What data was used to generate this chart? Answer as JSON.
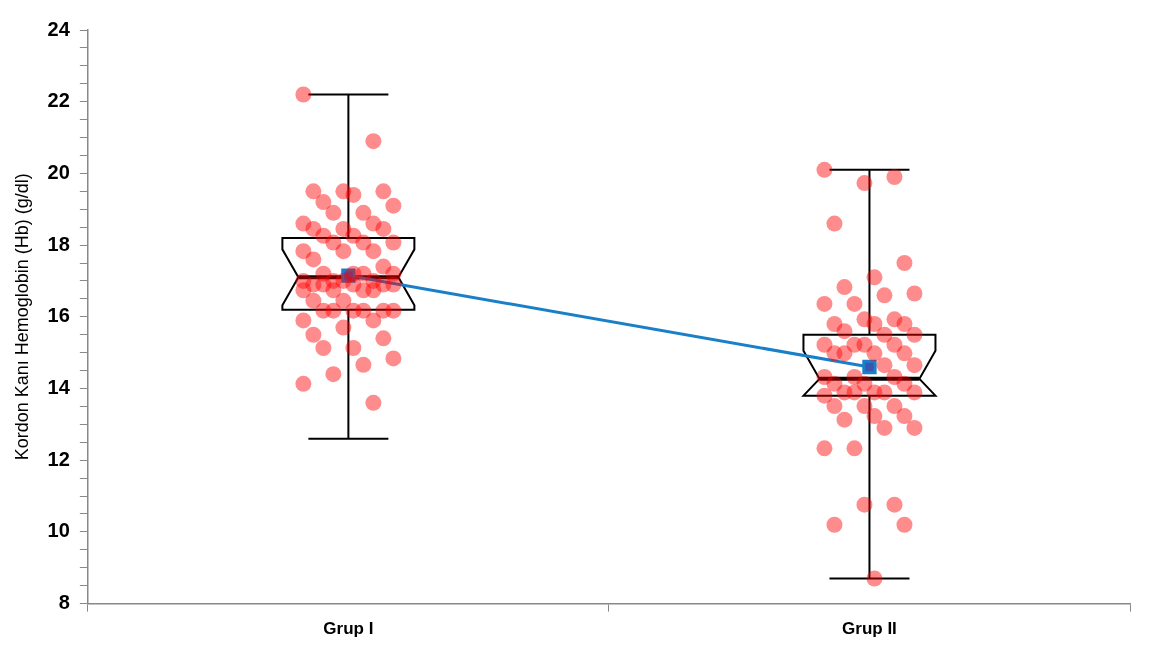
{
  "chart_data": {
    "type": "box",
    "ylabel": "Kordon Kanı Hemoglobin (Hb) (g/dl)",
    "categories": [
      "Grup I",
      "Grup II"
    ],
    "boxes": [
      {
        "low": 12.6,
        "q1": 16.2,
        "median": 17.1,
        "q3": 18.2,
        "high": 22.2
      },
      {
        "low": 8.7,
        "q1": 13.8,
        "median": 14.27,
        "q3": 15.5,
        "high": 20.1
      }
    ],
    "series": [
      {
        "type": "scatter",
        "color": "#ff0000",
        "marker": "circle",
        "x": [
          "Grup I",
          "Grup I",
          "Grup I",
          "Grup I",
          "Grup I",
          "Grup I",
          "Grup I",
          "Grup I",
          "Grup I",
          "Grup I",
          "Grup I",
          "Grup I",
          "Grup I",
          "Grup I",
          "Grup I",
          "Grup I",
          "Grup I",
          "Grup I",
          "Grup I",
          "Grup I",
          "Grup I",
          "Grup I",
          "Grup I",
          "Grup I",
          "Grup I",
          "Grup I",
          "Grup I",
          "Grup I",
          "Grup I",
          "Grup I",
          "Grup I",
          "Grup I",
          "Grup I",
          "Grup I",
          "Grup I",
          "Grup I",
          "Grup I",
          "Grup I",
          "Grup I",
          "Grup I",
          "Grup I",
          "Grup I",
          "Grup I",
          "Grup I",
          "Grup I",
          "Grup I",
          "Grup I",
          "Grup I",
          "Grup I",
          "Grup I",
          "Grup I",
          "Grup I",
          "Grup I",
          "Grup I",
          "Grup I",
          "Grup I",
          "Grup I",
          "Grup I",
          "Grup I",
          "Grup I",
          "Grup I",
          "Grup I"
        ],
        "values": [
          22.2,
          20.9,
          19.5,
          19.5,
          19.5,
          19.4,
          19.2,
          19.1,
          18.9,
          18.9,
          18.6,
          18.6,
          18.45,
          18.45,
          18.45,
          18.26,
          18.26,
          18.07,
          18.07,
          18.07,
          17.83,
          17.83,
          17.83,
          17.6,
          17.4,
          17.2,
          17.2,
          17.2,
          17.2,
          17.0,
          17.0,
          17.0,
          17.0,
          16.9,
          16.9,
          16.9,
          16.9,
          16.9,
          16.74,
          16.74,
          16.74,
          16.74,
          16.45,
          16.45,
          16.17,
          16.17,
          16.17,
          16.17,
          16.17,
          16.17,
          15.9,
          15.9,
          15.7,
          15.5,
          15.4,
          15.13,
          15.13,
          14.84,
          14.66,
          14.4,
          14.13,
          13.6
        ]
      },
      {
        "type": "scatter",
        "color": "#ff0000",
        "marker": "circle",
        "x": [
          "Grup II",
          "Grup II",
          "Grup II",
          "Grup II",
          "Grup II",
          "Grup II",
          "Grup II",
          "Grup II",
          "Grup II",
          "Grup II",
          "Grup II",
          "Grup II",
          "Grup II",
          "Grup II",
          "Grup II",
          "Grup II",
          "Grup II",
          "Grup II",
          "Grup II",
          "Grup II",
          "Grup II",
          "Grup II",
          "Grup II",
          "Grup II",
          "Grup II",
          "Grup II",
          "Grup II",
          "Grup II",
          "Grup II",
          "Grup II",
          "Grup II",
          "Grup II",
          "Grup II",
          "Grup II",
          "Grup II",
          "Grup II",
          "Grup II",
          "Grup II",
          "Grup II",
          "Grup II",
          "Grup II",
          "Grup II",
          "Grup II",
          "Grup II",
          "Grup II",
          "Grup II",
          "Grup II",
          "Grup II",
          "Grup II",
          "Grup II",
          "Grup II",
          "Grup II",
          "Grup II",
          "Grup II",
          "Grup II",
          "Grup II"
        ],
        "values": [
          20.1,
          19.9,
          19.73,
          18.6,
          17.5,
          17.1,
          16.83,
          16.65,
          16.6,
          16.36,
          16.36,
          15.93,
          15.93,
          15.8,
          15.8,
          15.8,
          15.6,
          15.5,
          15.5,
          15.22,
          15.22,
          15.22,
          15.22,
          14.98,
          14.98,
          14.98,
          14.98,
          14.65,
          14.65,
          14.32,
          14.32,
          14.32,
          14.13,
          14.13,
          14.13,
          13.89,
          13.89,
          13.89,
          13.89,
          13.89,
          13.8,
          13.51,
          13.51,
          13.51,
          13.23,
          13.23,
          13.13,
          12.9,
          12.9,
          12.33,
          12.33,
          10.76,
          10.76,
          10.2,
          10.2,
          8.7
        ]
      },
      {
        "type": "line",
        "color": "#1a7fc9",
        "marker": "square",
        "x": [
          "Grup I",
          "Grup II"
        ],
        "values": [
          17.15,
          14.6
        ]
      }
    ],
    "ylim": [
      8,
      24
    ],
    "yticks": [
      8,
      {
        "value": 8.5,
        "label": null
      },
      {
        "value": 9,
        "label": null
      },
      {
        "value": 9.5,
        "label": null
      },
      10,
      {
        "value": 10.5,
        "label": null
      },
      {
        "value": 11,
        "label": null
      },
      {
        "value": 11.5,
        "label": null
      },
      12,
      {
        "value": 12.5,
        "label": null
      },
      {
        "value": 13,
        "label": null
      },
      {
        "value": 13.5,
        "label": null
      },
      14,
      {
        "value": 14.5,
        "label": null
      },
      {
        "value": 15,
        "label": null
      },
      {
        "value": 15.5,
        "label": null
      },
      16,
      {
        "value": 16.5,
        "label": null
      },
      {
        "value": 17,
        "label": null
      },
      {
        "value": 17.5,
        "label": null
      },
      18,
      {
        "value": 18.5,
        "label": null
      },
      {
        "value": 19,
        "label": null
      },
      {
        "value": 19.5,
        "label": null
      },
      20,
      {
        "value": 20.5,
        "label": null
      },
      {
        "value": 21,
        "label": null
      },
      {
        "value": 21.5,
        "label": null
      },
      22,
      {
        "value": 22.5,
        "label": null
      },
      {
        "value": 23,
        "label": null
      },
      {
        "value": 23.5,
        "label": null
      },
      24
    ]
  }
}
